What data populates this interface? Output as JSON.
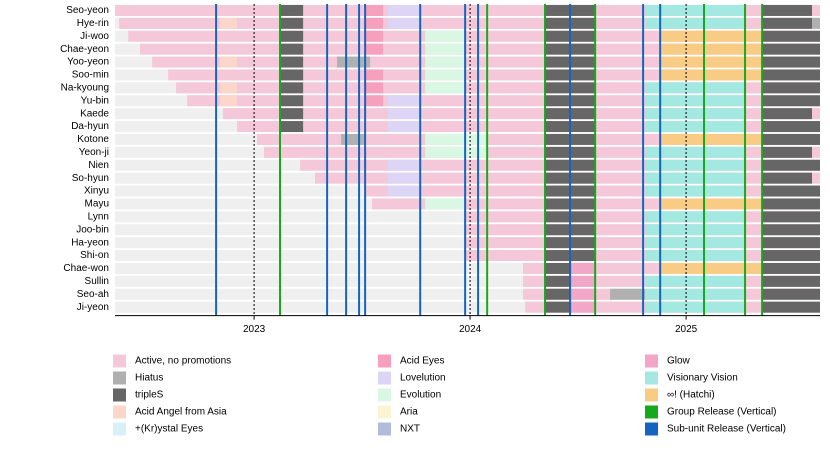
{
  "chart_data": {
    "type": "timeline",
    "categories": [
      "Seo-yeon",
      "Hye-rin",
      "Ji-woo",
      "Chae-yeon",
      "Yoo-yeon",
      "Soo-min",
      "Na-kyoung",
      "Yu-bin",
      "Kaede",
      "Da-hyun",
      "Kotone",
      "Yeon-ji",
      "Nien",
      "So-hyun",
      "Xinyu",
      "Mayu",
      "Lynn",
      "Joo-bin",
      "Ha-yeon",
      "Shi-on",
      "Chae-won",
      "Sullin",
      "Seo-ah",
      "Ji-yeon"
    ],
    "xlim": [
      2022.356,
      2025.62
    ],
    "xticks": [
      2023,
      2024,
      2025
    ],
    "legend": [
      {
        "name": "Active, no promotions",
        "color": "#f4c8d8"
      },
      {
        "name": "Hiatus",
        "color": "#b0b0b0"
      },
      {
        "name": "tripleS",
        "color": "#666666"
      },
      {
        "name": "Acid Angel from Asia",
        "color": "#fbd7cb"
      },
      {
        "name": "+(Kr)ystal Eyes",
        "color": "#d8f0f8"
      },
      {
        "name": "Acid Eyes",
        "color": "#f7a0bd"
      },
      {
        "name": "Lovelution",
        "color": "#ddd5f5"
      },
      {
        "name": "Evolution",
        "color": "#d9f7e3"
      },
      {
        "name": "Aria",
        "color": "#fbf4d2"
      },
      {
        "name": "NXT",
        "color": "#b0bcd9"
      },
      {
        "name": "Glow",
        "color": "#f2a6c8"
      },
      {
        "name": "Visionary Vision",
        "color": "#a3e8e1"
      },
      {
        "name": "∞! (Hatchi)",
        "color": "#f9cc86"
      },
      {
        "name": "Group Release (Vertical)",
        "color": "#17a91d"
      },
      {
        "name": "Sub-unit Release (Vertical)",
        "color": "#1565c0"
      }
    ],
    "rows": [
      {
        "active": [
          2022.356,
          2025.62
        ],
        "segments": [
          [
            2023.12,
            2023.227,
            2
          ],
          [
            2023.514,
            2023.597,
            5
          ],
          [
            2023.62,
            2023.769,
            6
          ],
          [
            2024.347,
            2024.579,
            2
          ],
          [
            2024.81,
            2025.273,
            11
          ],
          [
            2025.352,
            2025.583,
            2
          ]
        ]
      },
      {
        "active": [
          2022.375,
          2025.62
        ],
        "segments": [
          [
            2022.843,
            2022.921,
            3
          ],
          [
            2023.12,
            2023.227,
            2
          ],
          [
            2023.514,
            2023.597,
            5
          ],
          [
            2023.62,
            2023.769,
            6
          ],
          [
            2024.347,
            2024.579,
            2
          ],
          [
            2024.81,
            2025.273,
            11
          ],
          [
            2025.352,
            2025.583,
            2
          ],
          [
            2025.583,
            2025.62,
            1
          ]
        ]
      },
      {
        "active": [
          2022.417,
          2025.62
        ],
        "segments": [
          [
            2023.12,
            2023.227,
            2
          ],
          [
            2023.514,
            2023.597,
            5
          ],
          [
            2023.792,
            2023.977,
            7
          ],
          [
            2024.347,
            2024.579,
            2
          ],
          [
            2024.88,
            2025.352,
            12
          ],
          [
            2025.352,
            2025.62,
            2
          ]
        ]
      },
      {
        "active": [
          2022.472,
          2025.62
        ],
        "segments": [
          [
            2023.12,
            2023.227,
            2
          ],
          [
            2023.514,
            2023.597,
            5
          ],
          [
            2023.792,
            2023.977,
            7
          ],
          [
            2024.347,
            2024.579,
            2
          ],
          [
            2024.88,
            2025.352,
            12
          ],
          [
            2025.352,
            2025.62,
            2
          ]
        ]
      },
      {
        "active": [
          2022.528,
          2025.62
        ],
        "segments": [
          [
            2022.843,
            2022.921,
            3
          ],
          [
            2023.12,
            2023.227,
            2
          ],
          [
            2023.384,
            2023.537,
            1
          ],
          [
            2023.792,
            2023.977,
            7
          ],
          [
            2024.347,
            2024.579,
            2
          ],
          [
            2024.88,
            2025.352,
            12
          ],
          [
            2025.352,
            2025.62,
            2
          ]
        ]
      },
      {
        "active": [
          2022.602,
          2025.62
        ],
        "segments": [
          [
            2023.12,
            2023.227,
            2
          ],
          [
            2023.514,
            2023.597,
            5
          ],
          [
            2023.792,
            2023.977,
            7
          ],
          [
            2024.347,
            2024.579,
            2
          ],
          [
            2024.88,
            2025.352,
            12
          ],
          [
            2025.352,
            2025.62,
            2
          ]
        ]
      },
      {
        "active": [
          2022.639,
          2025.62
        ],
        "segments": [
          [
            2022.843,
            2022.921,
            3
          ],
          [
            2023.12,
            2023.227,
            2
          ],
          [
            2023.514,
            2023.597,
            5
          ],
          [
            2023.792,
            2023.977,
            7
          ],
          [
            2024.347,
            2024.579,
            2
          ],
          [
            2024.81,
            2025.273,
            11
          ],
          [
            2025.352,
            2025.62,
            2
          ]
        ]
      },
      {
        "active": [
          2022.69,
          2025.62
        ],
        "segments": [
          [
            2022.843,
            2022.921,
            3
          ],
          [
            2023.12,
            2023.227,
            2
          ],
          [
            2023.514,
            2023.597,
            5
          ],
          [
            2023.62,
            2023.769,
            6
          ],
          [
            2024.347,
            2024.579,
            2
          ],
          [
            2024.81,
            2025.273,
            11
          ],
          [
            2025.352,
            2025.62,
            2
          ]
        ]
      },
      {
        "active": [
          2022.856,
          2025.62
        ],
        "segments": [
          [
            2023.12,
            2023.227,
            2
          ],
          [
            2023.62,
            2023.769,
            6
          ],
          [
            2024.347,
            2024.579,
            2
          ],
          [
            2024.81,
            2025.273,
            11
          ],
          [
            2025.352,
            2025.583,
            2
          ]
        ]
      },
      {
        "active": [
          2022.921,
          2025.62
        ],
        "segments": [
          [
            2023.12,
            2023.227,
            2
          ],
          [
            2023.62,
            2023.769,
            6
          ],
          [
            2024.347,
            2024.579,
            2
          ],
          [
            2024.81,
            2025.273,
            11
          ],
          [
            2025.352,
            2025.62,
            2
          ]
        ]
      },
      {
        "active": [
          2023.014,
          2025.62
        ],
        "segments": [
          [
            2023.403,
            2023.514,
            1
          ],
          [
            2023.792,
            2024.079,
            7
          ],
          [
            2024.347,
            2024.579,
            2
          ],
          [
            2024.88,
            2025.352,
            12
          ],
          [
            2025.352,
            2025.62,
            2
          ]
        ]
      },
      {
        "active": [
          2023.046,
          2025.62
        ],
        "segments": [
          [
            2023.792,
            2024.079,
            7
          ],
          [
            2024.347,
            2024.579,
            2
          ],
          [
            2024.81,
            2025.273,
            11
          ],
          [
            2025.352,
            2025.583,
            2
          ]
        ]
      },
      {
        "active": [
          2023.213,
          2025.62
        ],
        "segments": [
          [
            2023.62,
            2023.769,
            6
          ],
          [
            2024.347,
            2024.579,
            2
          ],
          [
            2024.81,
            2025.273,
            11
          ],
          [
            2025.352,
            2025.62,
            2
          ]
        ]
      },
      {
        "active": [
          2023.282,
          2025.62
        ],
        "segments": [
          [
            2023.62,
            2023.769,
            6
          ],
          [
            2024.347,
            2024.579,
            2
          ],
          [
            2024.81,
            2025.273,
            11
          ],
          [
            2025.352,
            2025.583,
            2
          ]
        ]
      },
      {
        "active": [
          2023.514,
          2025.62
        ],
        "segments": [
          [
            2023.62,
            2023.769,
            6
          ],
          [
            2024.347,
            2024.579,
            2
          ],
          [
            2024.81,
            2025.273,
            11
          ],
          [
            2025.352,
            2025.62,
            2
          ]
        ]
      },
      {
        "active": [
          2023.546,
          2025.62
        ],
        "segments": [
          [
            2023.792,
            2023.977,
            7
          ],
          [
            2024.347,
            2024.579,
            2
          ],
          [
            2024.88,
            2025.352,
            12
          ],
          [
            2025.352,
            2025.62,
            2
          ]
        ]
      },
      {
        "active": [
          2023.977,
          2025.62
        ],
        "segments": [
          [
            2024.347,
            2024.579,
            2
          ],
          [
            2024.81,
            2025.273,
            11
          ],
          [
            2025.352,
            2025.62,
            2
          ]
        ]
      },
      {
        "active": [
          2023.977,
          2025.62
        ],
        "segments": [
          [
            2024.347,
            2024.579,
            2
          ],
          [
            2024.81,
            2025.273,
            11
          ],
          [
            2025.352,
            2025.62,
            2
          ]
        ]
      },
      {
        "active": [
          2023.977,
          2025.62
        ],
        "segments": [
          [
            2024.347,
            2024.579,
            2
          ],
          [
            2024.81,
            2025.273,
            11
          ],
          [
            2025.352,
            2025.62,
            2
          ]
        ]
      },
      {
        "active": [
          2023.977,
          2025.62
        ],
        "segments": [
          [
            2024.347,
            2024.579,
            2
          ],
          [
            2024.81,
            2025.273,
            11
          ],
          [
            2025.352,
            2025.62,
            2
          ]
        ]
      },
      {
        "active": [
          2024.245,
          2025.62
        ],
        "segments": [
          [
            2024.347,
            2024.463,
            2
          ],
          [
            2024.463,
            2024.579,
            10
          ],
          [
            2024.88,
            2025.352,
            12
          ],
          [
            2025.352,
            2025.62,
            2
          ]
        ]
      },
      {
        "active": [
          2024.245,
          2025.62
        ],
        "segments": [
          [
            2024.347,
            2024.463,
            2
          ],
          [
            2024.463,
            2024.579,
            10
          ],
          [
            2024.81,
            2025.273,
            11
          ],
          [
            2025.352,
            2025.62,
            2
          ]
        ]
      },
      {
        "active": [
          2024.245,
          2025.62
        ],
        "segments": [
          [
            2024.347,
            2024.463,
            2
          ],
          [
            2024.463,
            2024.579,
            10
          ],
          [
            2024.648,
            2024.81,
            1
          ],
          [
            2024.81,
            2025.273,
            11
          ],
          [
            2025.352,
            2025.62,
            2
          ]
        ]
      },
      {
        "active": [
          2024.255,
          2025.62
        ],
        "segments": [
          [
            2024.347,
            2024.463,
            2
          ],
          [
            2024.463,
            2024.579,
            10
          ],
          [
            2024.81,
            2025.273,
            11
          ],
          [
            2025.352,
            2025.62,
            2
          ]
        ]
      }
    ],
    "group_releases": [
      2023.12,
      2024.079,
      2024.347,
      2024.579,
      2025.083,
      2025.273,
      2025.352
    ],
    "subunit_releases": [
      2022.824,
      2023.338,
      2023.426,
      2023.486,
      2023.514,
      2023.769,
      2023.977,
      2024.037,
      2024.463,
      2024.801,
      2024.88
    ]
  }
}
